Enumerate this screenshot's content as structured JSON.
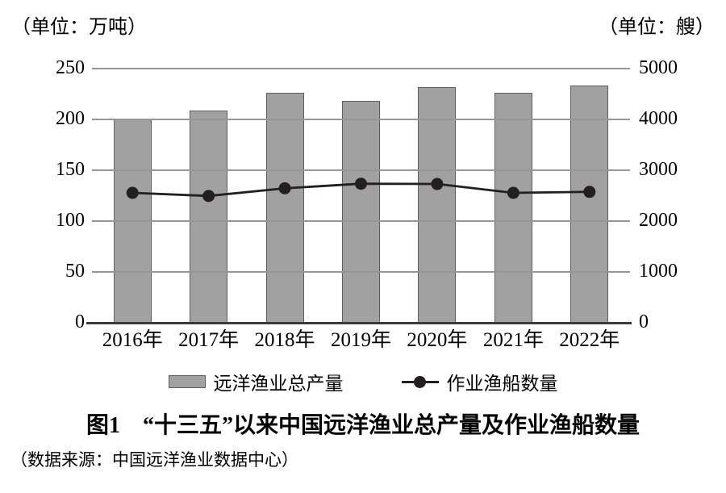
{
  "units": {
    "left": "（单位：万吨）",
    "right": "（单位：艘）"
  },
  "chart_data": {
    "type": "bar",
    "subtype": "combo-bar-line-dual-axis",
    "title": "图1　“十三五”以来中国远洋渔业总产量及作业渔船数量",
    "categories": [
      "2016年",
      "2017年",
      "2018年",
      "2019年",
      "2020年",
      "2021年",
      "2022年"
    ],
    "series": [
      {
        "name": "远洋渔业总产量",
        "type": "bar",
        "axis": "left",
        "unit": "万吨",
        "values": [
          200,
          209,
          226,
          218,
          232,
          226,
          233
        ]
      },
      {
        "name": "作业渔船数量",
        "type": "line",
        "axis": "right",
        "unit": "艘",
        "values": [
          2555,
          2495,
          2645,
          2735,
          2730,
          2555,
          2575
        ]
      }
    ],
    "left_axis": {
      "label": "（单位：万吨）",
      "min": 0,
      "max": 250,
      "ticks": [
        250,
        200,
        150,
        100,
        50,
        0
      ]
    },
    "right_axis": {
      "label": "（单位：艘）",
      "min": 0,
      "max": 5000,
      "ticks": [
        5000,
        4000,
        3000,
        2000,
        1000,
        0
      ]
    },
    "grid": "horizontal-only",
    "legend_position": "bottom"
  },
  "legend": {
    "bar_label": "远洋渔业总产量",
    "line_label": "作业渔船数量"
  },
  "title": "图1　“十三五”以来中国远洋渔业总产量及作业渔船数量",
  "source": "（数据来源：中国远洋渔业数据中心）",
  "colors": {
    "bar_fill": "#a1a1a1",
    "bar_border": "#5f5f5f",
    "line": "#231f20",
    "grid": "#969696",
    "axis": "#3c3c3c",
    "text": "#000000"
  }
}
